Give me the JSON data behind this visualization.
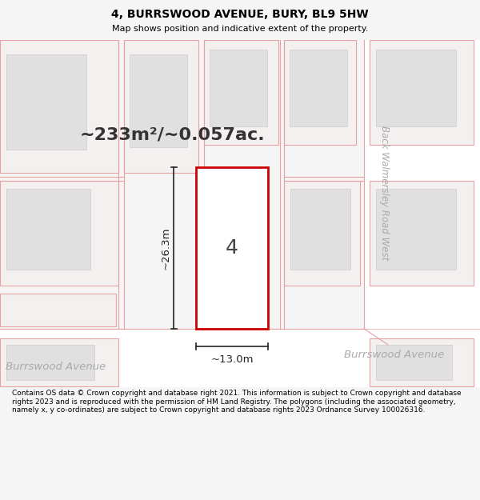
{
  "title": "4, BURRSWOOD AVENUE, BURY, BL9 5HW",
  "subtitle": "Map shows position and indicative extent of the property.",
  "footer": "Contains OS data © Crown copyright and database right 2021. This information is subject to Crown copyright and database rights 2023 and is reproduced with the permission of HM Land Registry. The polygons (including the associated geometry, namely x, y co-ordinates) are subject to Crown copyright and database rights 2023 Ordnance Survey 100026316.",
  "area_label": "~233m²/~0.057ac.",
  "width_label": "~13.0m",
  "height_label": "~26.3m",
  "property_number": "4",
  "bg_color": "#f5f5f5",
  "map_bg": "#ebebeb",
  "property_outline": "#cc0000",
  "property_fill": "#ffffff",
  "title_color": "#000000",
  "footer_color": "#000000",
  "map_line_color": "#e8a0a0",
  "road_fill": "#ffffff",
  "parcel_fill": "#f5f0f0",
  "building_fill": "#e0e0e0",
  "building_edge": "#cccccc",
  "dim_color": "#222222",
  "road_text_color": "#aaaaaa"
}
